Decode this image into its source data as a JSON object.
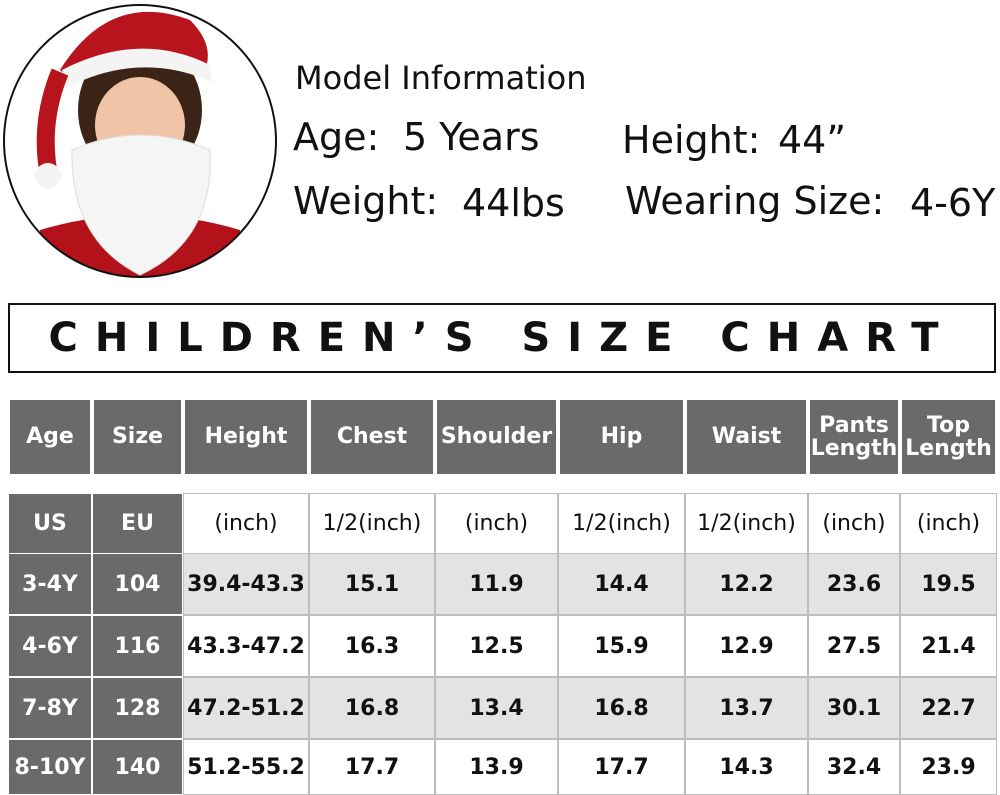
{
  "model": {
    "title": "Model Information",
    "age_label": "Age:",
    "age": "5 Years",
    "height_label": "Height:",
    "height": "44”",
    "weight_label": "Weight:",
    "weight": "44lbs",
    "size_label": "Wearing Size:",
    "size": "4-6Y"
  },
  "banner": "CHILDREN’S SIZE CHART",
  "table": {
    "header": [
      "Age",
      "Size",
      "Height",
      "Chest",
      "Shoulder",
      "Hip",
      "Waist",
      "Pants Length",
      "Top Length"
    ],
    "units": [
      "US",
      "EU",
      "(inch)",
      "1/2(inch)",
      "(inch)",
      "1/2(inch)",
      "1/2(inch)",
      "(inch)",
      "(inch)"
    ],
    "rows": [
      [
        "3-4Y",
        "104",
        "39.4-43.3",
        "15.1",
        "11.9",
        "14.4",
        "12.2",
        "23.6",
        "19.5"
      ],
      [
        "4-6Y",
        "116",
        "43.3-47.2",
        "16.3",
        "12.5",
        "15.9",
        "12.9",
        "27.5",
        "21.4"
      ],
      [
        "7-8Y",
        "128",
        "47.2-51.2",
        "16.8",
        "13.4",
        "16.8",
        "13.7",
        "30.1",
        "22.7"
      ],
      [
        "8-10Y",
        "140",
        "51.2-55.2",
        "17.7",
        "13.9",
        "17.7",
        "14.3",
        "32.4",
        "23.9"
      ]
    ]
  }
}
